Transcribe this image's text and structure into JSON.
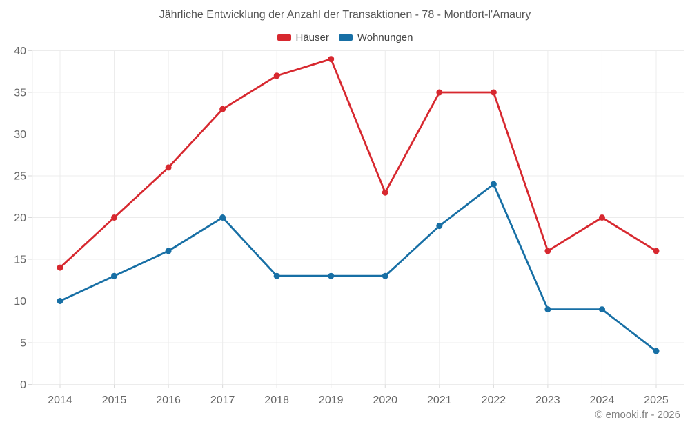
{
  "title": "Jährliche Entwicklung der Anzahl der Transaktionen - 78 - Montfort-l'Amaury",
  "footer": {
    "text": "© emooki.fr - 2026"
  },
  "colors": {
    "grid": "#ececec",
    "tick": "#d9d9d9",
    "axis_text": "#666666",
    "title_text": "#555555",
    "legend_text": "#444444",
    "footer_text": "#808080",
    "background": "#ffffff",
    "hauser_red": "#d7282f",
    "wohnungen_blue": "#176fa5"
  },
  "chart_data": {
    "type": "line",
    "categories": [
      "2014",
      "2015",
      "2016",
      "2017",
      "2018",
      "2019",
      "2020",
      "2021",
      "2022",
      "2023",
      "2024",
      "2025"
    ],
    "series": [
      {
        "name": "Häuser",
        "color": "#d7282f",
        "values": [
          14,
          20,
          26,
          33,
          37,
          39,
          23,
          35,
          35,
          16,
          20,
          16
        ]
      },
      {
        "name": "Wohnungen",
        "color": "#176fa5",
        "values": [
          10,
          13,
          16,
          20,
          13,
          13,
          13,
          19,
          24,
          9,
          9,
          4
        ]
      }
    ],
    "title": "Jährliche Entwicklung der Anzahl der Transaktionen - 78 - Montfort-l'Amaury",
    "xlabel": "",
    "ylabel": "",
    "ylim": [
      0,
      40
    ],
    "y_ticks": [
      0,
      5,
      10,
      15,
      20,
      25,
      30,
      35,
      40
    ],
    "grid": true,
    "legend_position": "top"
  }
}
